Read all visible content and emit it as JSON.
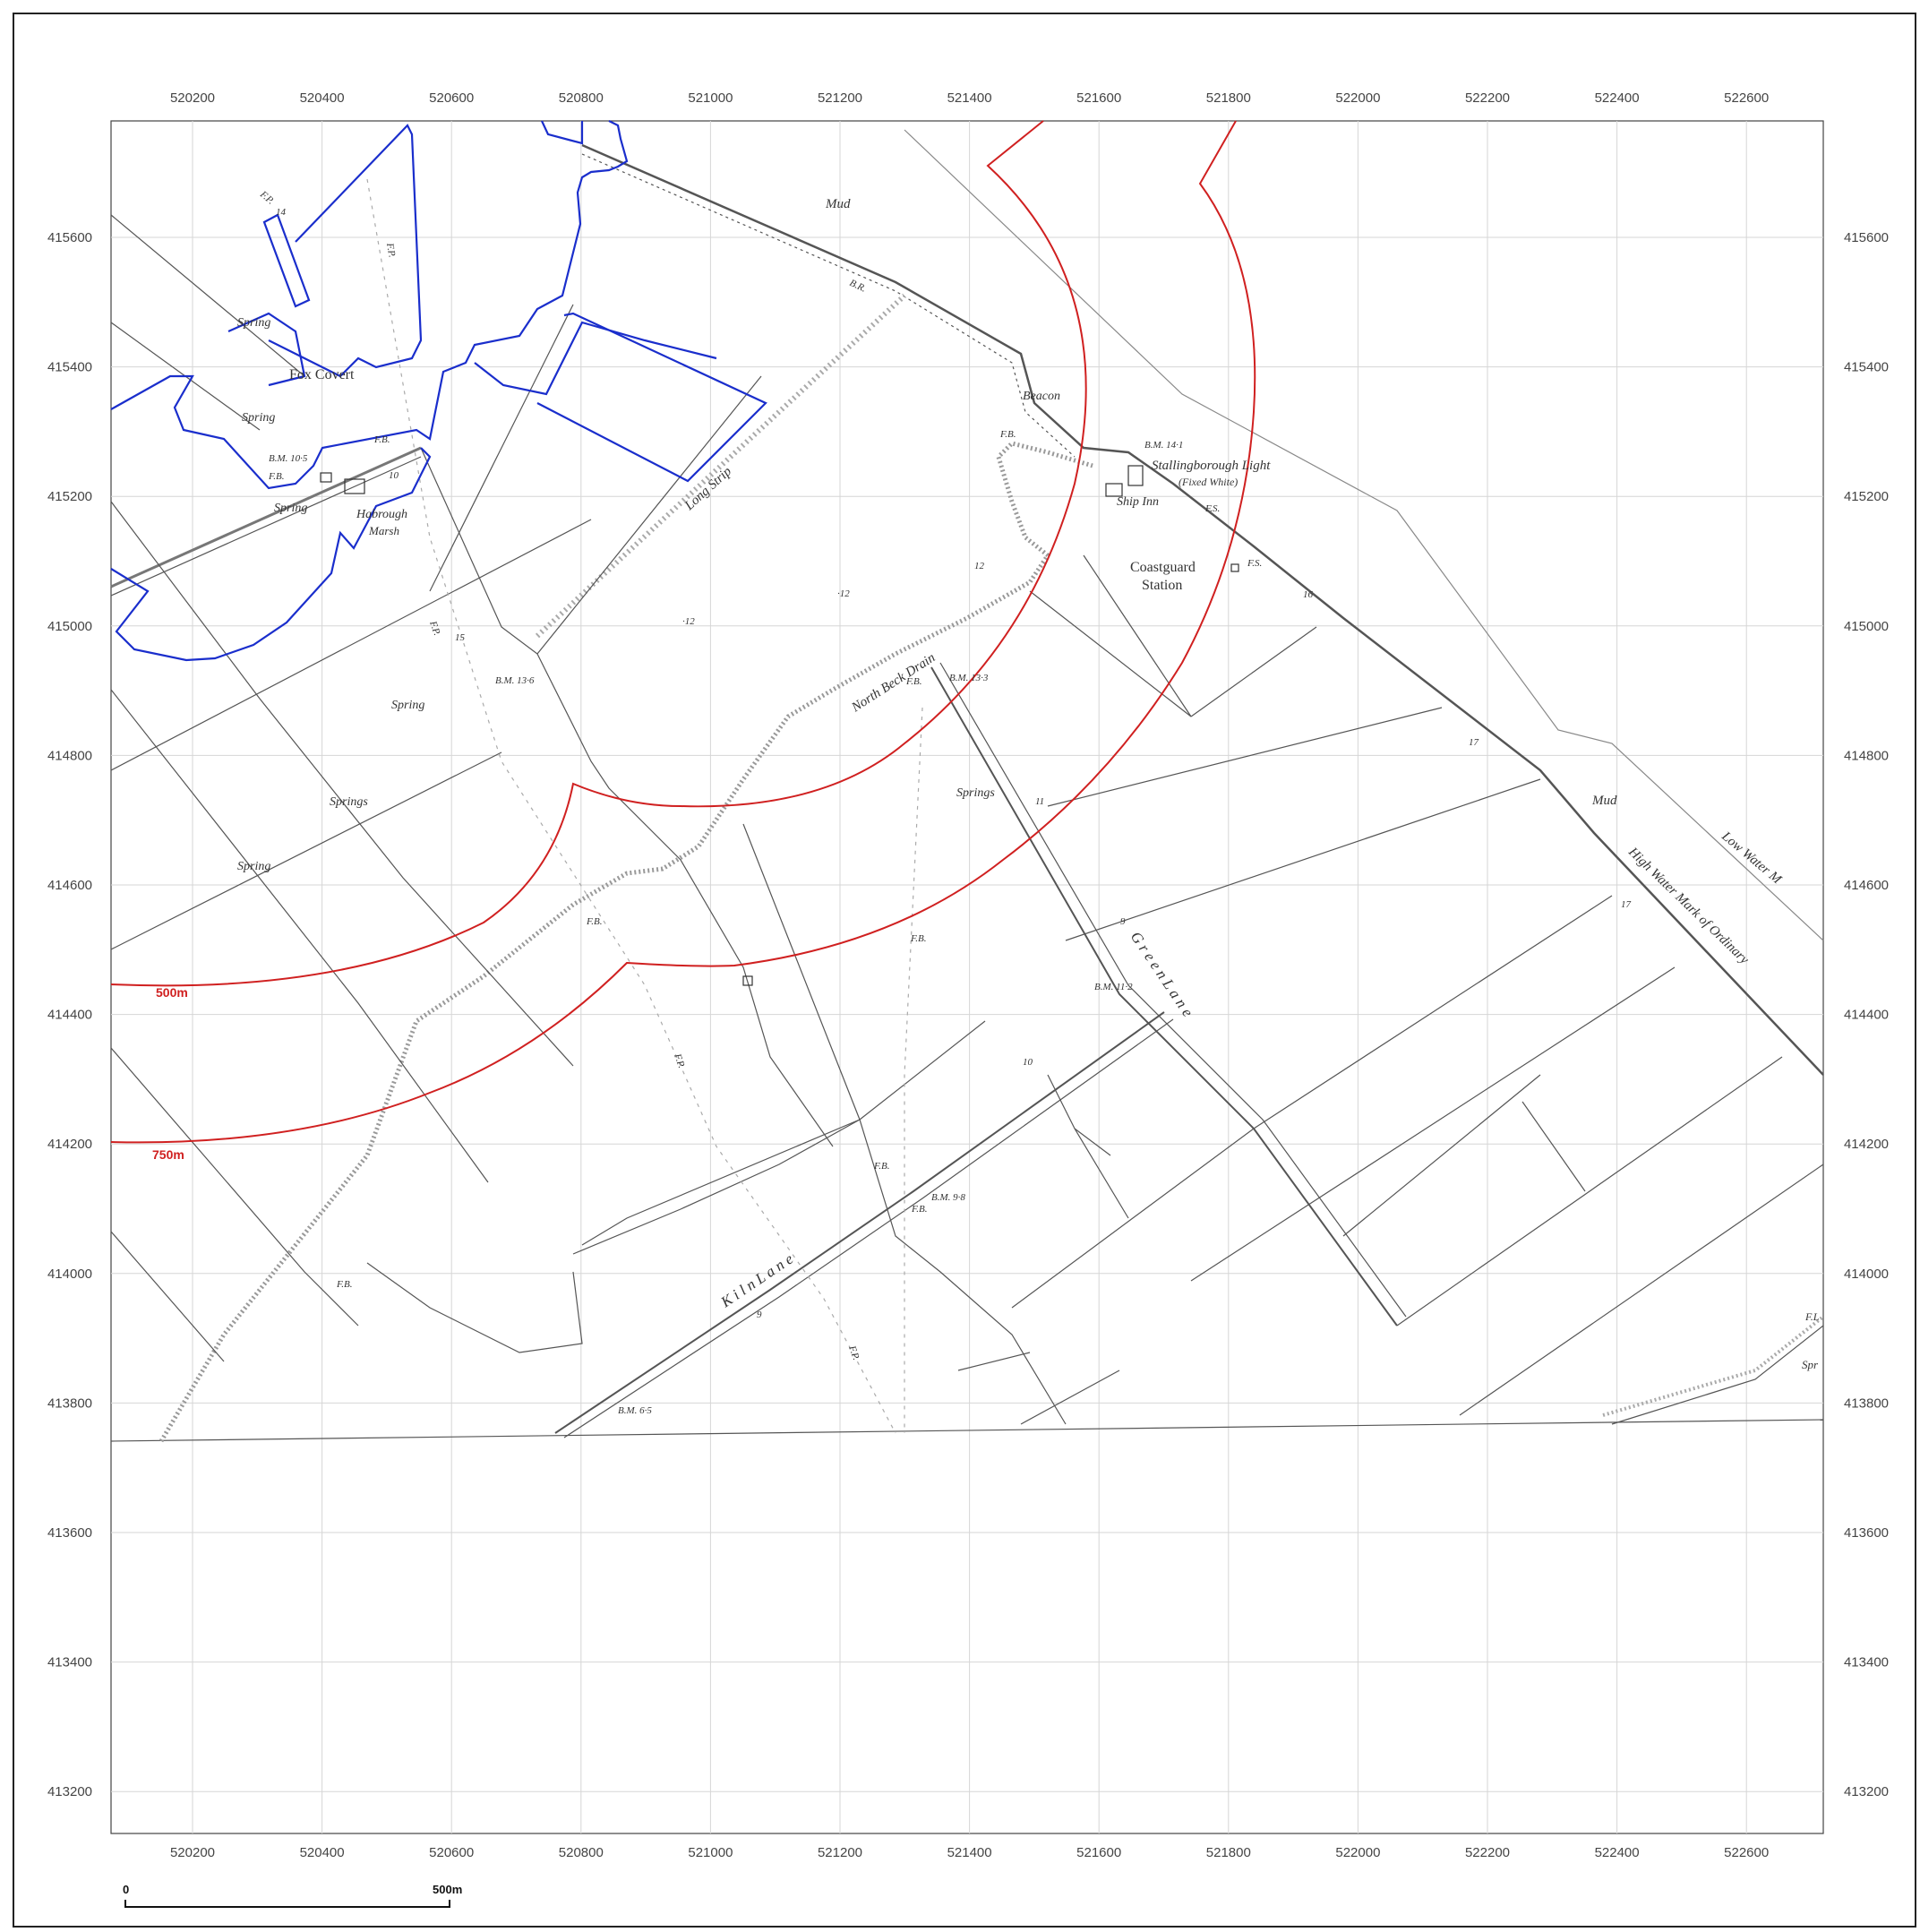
{
  "map": {
    "x_ticks": [
      "520200",
      "520400",
      "520600",
      "520800",
      "521000",
      "521200",
      "521400",
      "521600",
      "521800",
      "522000",
      "522200",
      "522400",
      "522600"
    ],
    "y_ticks": [
      "415600",
      "415400",
      "415200",
      "415000",
      "414800",
      "414600",
      "414400",
      "414200",
      "414000",
      "413800",
      "413600",
      "413400",
      "413200"
    ],
    "buffers": [
      {
        "label": "500m",
        "color": "#d02020"
      },
      {
        "label": "750m",
        "color": "#d02020"
      }
    ],
    "boundary_color": "#1a2ecc",
    "labels": {
      "mud_top": "Mud",
      "mud_right": "Mud",
      "fox_covert": "Fox Covert",
      "spring_1": "Spring",
      "spring_2": "Spring",
      "spring_3": "Spring",
      "spring_4": "Spring",
      "spring_5": "Spring",
      "springs_1": "Springs",
      "springs_2": "Springs",
      "habrough_marsh_1": "Habrough",
      "habrough_marsh_2": "Marsh",
      "long_strip": "Long Strip",
      "north_beck_drain": "North Beck Drain",
      "beacon": "Beacon",
      "stallingborough_light": "Stallingborough Light",
      "fixed_white": "(Fixed White)",
      "ship_inn": "Ship Inn",
      "coastguard_1": "Coastguard",
      "coastguard_2": "Station",
      "green_lane": "G r e e n   L a n e",
      "kiln_lane": "K i l n   L a n e",
      "high_water": "High Water Mark of Ordinary",
      "low_water": "Low Water M",
      "bm_1": "B.M. 14·1",
      "bm_2": "B.M. 10·5",
      "bm_3": "B.M. 13·6",
      "bm_4": "B.M. 13·3",
      "bm_5": "B.M. 11·2",
      "bm_6": "B.M. 9·8",
      "bm_7": "B.M. 6·5",
      "fb_1": "F.B.",
      "fb_2": "F.B.",
      "fb_3": "F.B.",
      "fb_4": "F.B.",
      "fb_5": "F.B.",
      "fb_6": "F.B.",
      "fb_7": "F.B.",
      "fb_8": "F.B.",
      "fb_9": "F.B.",
      "fp_1": "F.P.",
      "fp_2": "F.P.",
      "fp_3": "F.P.",
      "fp_4": "F.P.",
      "fp_5": "F.P.",
      "br": "B.R.",
      "fs_1": "F.S.",
      "fs_2": "F.S.",
      "spot_12a": "12",
      "spot_12b": "·12",
      "spot_12c": "·12",
      "spot_11": "11",
      "spot_9": "9",
      "spot_9b": "9",
      "spot_10": "10",
      "spot_15": "15",
      "spot_17a": "17",
      "spot_17b": "17",
      "spot_16": "16",
      "spot_14": "14",
      "spot_10b": "10",
      "edge_fl": "F.L",
      "edge_spr": "Spr"
    },
    "scale_bar": {
      "start": "0",
      "end": "500m"
    }
  }
}
